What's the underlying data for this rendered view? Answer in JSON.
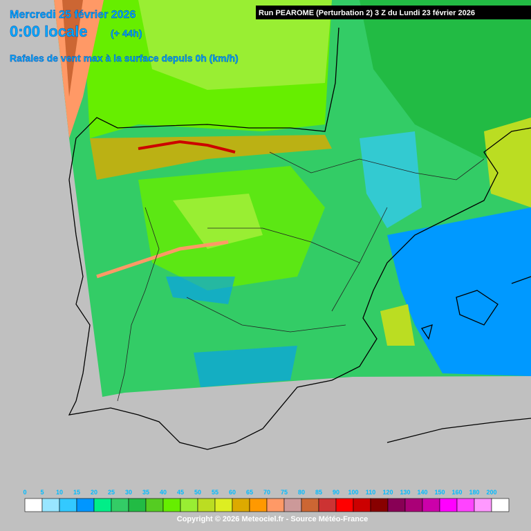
{
  "header": {
    "date": "Mercredi 25 février 2026",
    "time": "0:00 locale",
    "lead": "(+ 44h)",
    "subtitle": "Rafales de vent max à la surface depuis 0h (km/h)",
    "run": "Run PEAROME (Perturbation 2) 3 Z du Lundi 23 février 2026"
  },
  "legend": {
    "items": [
      {
        "label": 0,
        "color": "#ffffff"
      },
      {
        "label": 5,
        "color": "#99e6ff"
      },
      {
        "label": 10,
        "color": "#33c9ff"
      },
      {
        "label": 15,
        "color": "#0096ff"
      },
      {
        "label": 20,
        "color": "#00ee88"
      },
      {
        "label": 25,
        "color": "#33cc66"
      },
      {
        "label": 30,
        "color": "#22bb44"
      },
      {
        "label": 35,
        "color": "#55cc22"
      },
      {
        "label": 40,
        "color": "#66ee00"
      },
      {
        "label": 45,
        "color": "#99ee33"
      },
      {
        "label": 50,
        "color": "#bbdd22"
      },
      {
        "label": 55,
        "color": "#ddee22"
      },
      {
        "label": 60,
        "color": "#ddaa00"
      },
      {
        "label": 65,
        "color": "#ff9900"
      },
      {
        "label": 70,
        "color": "#ff9966"
      },
      {
        "label": 75,
        "color": "#cc9999"
      },
      {
        "label": 80,
        "color": "#cc6633"
      },
      {
        "label": 85,
        "color": "#cc3333"
      },
      {
        "label": 90,
        "color": "#ff0000"
      },
      {
        "label": 100,
        "color": "#cc0000"
      },
      {
        "label": 110,
        "color": "#880000"
      },
      {
        "label": 120,
        "color": "#880055"
      },
      {
        "label": 130,
        "color": "#aa0077"
      },
      {
        "label": 140,
        "color": "#cc00aa"
      },
      {
        "label": 150,
        "color": "#ff00ff"
      },
      {
        "label": 160,
        "color": "#ff44ff"
      },
      {
        "label": 180,
        "color": "#ff99ff"
      },
      {
        "label": 200,
        "color": "#ffffff"
      }
    ]
  },
  "footer": {
    "copyright": "Copyright © 2026 Meteociel.fr - Source Météo-France"
  }
}
